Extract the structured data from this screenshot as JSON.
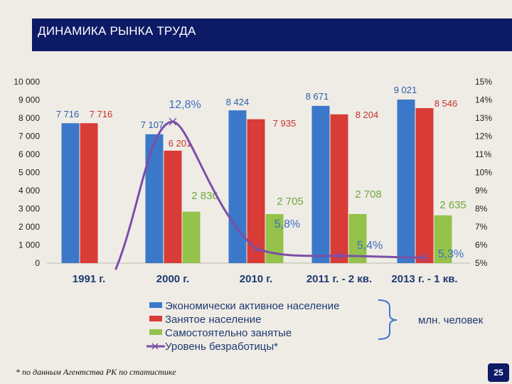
{
  "slide": {
    "title": "ДИНАМИКА РЫНКА ТРУДА",
    "footnote": "* по данным Агентства РК по статистике",
    "page_number": "25"
  },
  "colors": {
    "active": "#3b78c9",
    "employed": "#d93b36",
    "self": "#94c24a",
    "unemployment": "#7b4fa8",
    "line_label": "#3c6fc0",
    "bar_label": "#2a5caa",
    "employed_label": "#c8302c",
    "self_label": "#6fa83a"
  },
  "chart_data": {
    "type": "bar",
    "title": "ДИНАМИКА РЫНКА ТРУДА",
    "categories": [
      "1991 г.",
      "2000 г.",
      "2010 г.",
      "2011 г. - 2 кв.",
      "2013 г. - 1 кв."
    ],
    "series": [
      {
        "name": "Экономически активное население",
        "values": [
          7716,
          7107,
          8424,
          8671,
          9021
        ],
        "labels": [
          "7 716",
          "7 107",
          "8 424",
          "8 671",
          "9 021"
        ]
      },
      {
        "name": "Занятое население",
        "values": [
          7716,
          6201,
          7935,
          8204,
          8546
        ],
        "labels": [
          "7 716",
          "6 201",
          "7 935",
          "8 204",
          "8 546"
        ]
      },
      {
        "name": "Самостоятельно занятые",
        "values": [
          null,
          2836,
          2705,
          2708,
          2635
        ],
        "labels": [
          "",
          "2 836",
          "2 705",
          "2 708",
          "2 635"
        ]
      }
    ],
    "line_series": {
      "name": "Уровень безработицы*",
      "points": [
        {
          "category": "2000 г.",
          "value": 12.8,
          "label": "12,8%"
        },
        {
          "category": "2010 г.",
          "value": 5.8,
          "label": "5,8%"
        },
        {
          "category": "2011 г. - 2 кв.",
          "value": 5.4,
          "label": "5,4%"
        },
        {
          "category": "2013 г. - 1 кв.",
          "value": 5.3,
          "label": "5,3%"
        }
      ]
    },
    "y_left": {
      "min": 0,
      "max": 10000,
      "ticks": [
        "0",
        "1 000",
        "2 000",
        "3 000",
        "4 000",
        "5 000",
        "6 000",
        "7 000",
        "8 000",
        "9 000",
        "10 000"
      ]
    },
    "y_right": {
      "min": 5,
      "max": 15,
      "ticks": [
        "5%",
        "6%",
        "7%",
        "8%",
        "9%",
        "10%",
        "11%",
        "12%",
        "13%",
        "14%",
        "15%"
      ]
    },
    "grid": false,
    "legend": {
      "placement": "bottom-center",
      "entries": [
        "Экономически активное население",
        "Занятое население",
        "Самостоятельно занятые",
        "Уровень безработицы*"
      ],
      "brace_note": "млн. человек"
    }
  }
}
